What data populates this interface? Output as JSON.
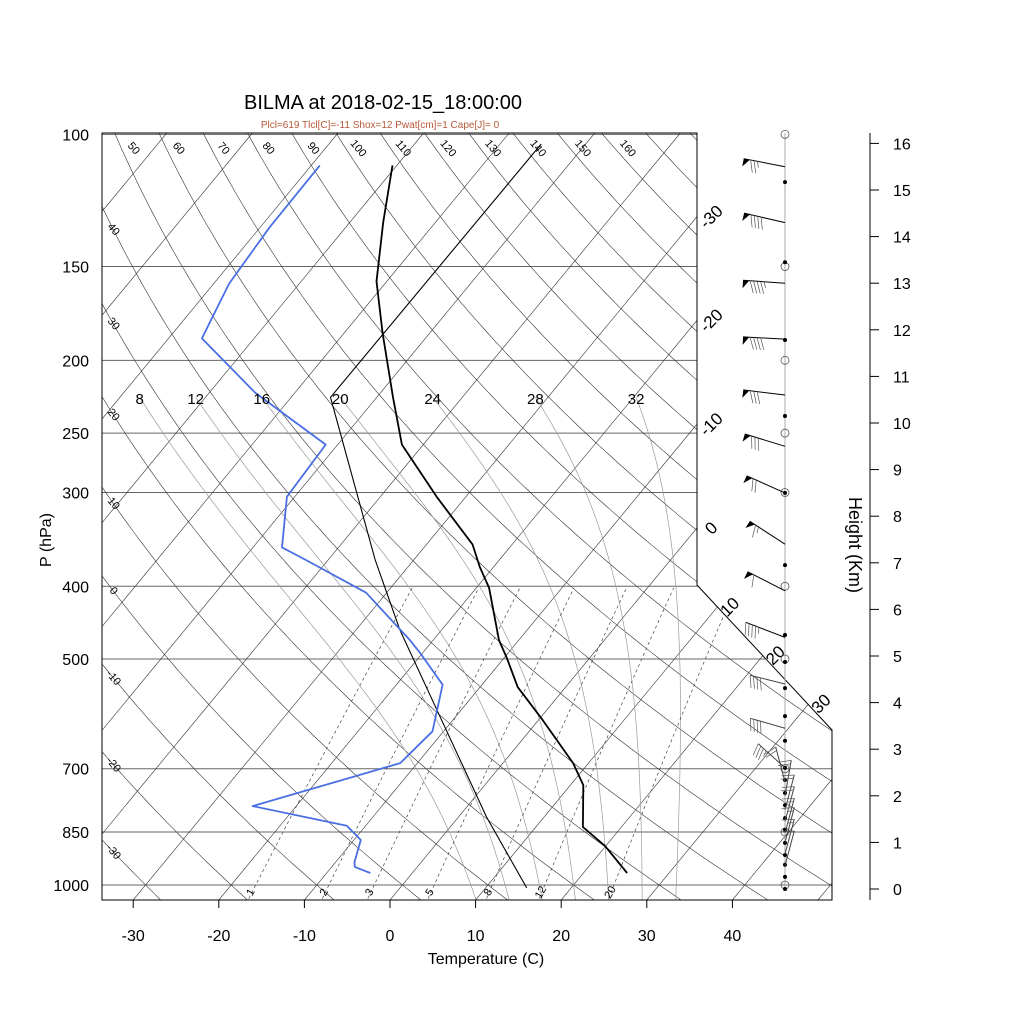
{
  "chart_data": {
    "type": "skewt",
    "title": "BILMA at 2018-02-15_18:00:00",
    "subtitle": "Plcl=619 Tlcl[C]=-11 Shox=12 Pwat[cm]=1 Cape[J]= 0",
    "xlabel": "Temperature (C)",
    "ylabel": "P (hPa)",
    "y2label": "Height (Km)",
    "x_ticks": [
      -30,
      -20,
      -10,
      0,
      10,
      20,
      30,
      40
    ],
    "pressure_levels": [
      100,
      150,
      200,
      250,
      300,
      400,
      500,
      700,
      850,
      1000
    ],
    "height_ticks_km": [
      0,
      1,
      2,
      3,
      4,
      5,
      6,
      7,
      8,
      9,
      10,
      11,
      12,
      13,
      14,
      15,
      16
    ],
    "dry_adiabat_labels_top": [
      50,
      60,
      70,
      80,
      90,
      100,
      110,
      120,
      130,
      140,
      150,
      160
    ],
    "dry_adiabat_labels_left": [
      40,
      30,
      20,
      10,
      0,
      -10,
      -20,
      -30
    ],
    "isotherm_labels": [
      -30,
      -20,
      -10,
      0,
      10,
      20,
      30
    ],
    "moist_adiabat_labels": [
      8,
      12,
      16,
      20,
      24,
      28,
      32
    ],
    "mixing_ratio_labels": [
      1,
      2,
      3,
      5,
      8,
      12,
      20
    ],
    "temperature": [
      {
        "p": 964,
        "t": 25.1
      },
      {
        "p": 887,
        "t": 19.9
      },
      {
        "p": 837,
        "t": 15.5
      },
      {
        "p": 736,
        "t": 11.5
      },
      {
        "p": 688,
        "t": 8.2
      },
      {
        "p": 603,
        "t": 0.5
      },
      {
        "p": 545,
        "t": -5.6
      },
      {
        "p": 497,
        "t": -9.8
      },
      {
        "p": 472,
        "t": -12.3
      },
      {
        "p": 402,
        "t": -18.5
      },
      {
        "p": 377,
        "t": -21.6
      },
      {
        "p": 352,
        "t": -24.6
      },
      {
        "p": 304,
        "t": -33.4
      },
      {
        "p": 259,
        "t": -42.5
      },
      {
        "p": 224,
        "t": -48.1
      },
      {
        "p": 184,
        "t": -55.5
      },
      {
        "p": 157,
        "t": -61.2
      },
      {
        "p": 131,
        "t": -66.1
      },
      {
        "p": 110,
        "t": -70.5
      }
    ],
    "dewpoint": [
      {
        "p": 964,
        "t": -4.9
      },
      {
        "p": 946,
        "t": -7.3
      },
      {
        "p": 932,
        "t": -7.8
      },
      {
        "p": 871,
        "t": -9.2
      },
      {
        "p": 834,
        "t": -12.2
      },
      {
        "p": 785,
        "t": -25.1
      },
      {
        "p": 688,
        "t": -12.0
      },
      {
        "p": 624,
        "t": -11.3
      },
      {
        "p": 541,
        "t": -14.6
      },
      {
        "p": 494,
        "t": -19.9
      },
      {
        "p": 472,
        "t": -22.7
      },
      {
        "p": 408,
        "t": -32.4
      },
      {
        "p": 369,
        "t": -42.6
      },
      {
        "p": 355,
        "t": -46.6
      },
      {
        "p": 304,
        "t": -50.9
      },
      {
        "p": 259,
        "t": -51.4
      },
      {
        "p": 221,
        "t": -64.6
      },
      {
        "p": 187,
        "t": -76.1
      },
      {
        "p": 158,
        "t": -78.2
      },
      {
        "p": 133,
        "t": -78.9
      },
      {
        "p": 110,
        "t": -79.0
      }
    ],
    "parcel": [
      {
        "p": 1009,
        "t": 14.8
      },
      {
        "p": 812,
        "t": 3.3
      },
      {
        "p": 597,
        "t": -11.8
      },
      {
        "p": 457,
        "t": -24.9
      },
      {
        "p": 369,
        "t": -34.5
      },
      {
        "p": 224,
        "t": -55.4
      },
      {
        "p": 103,
        "t": -55.2
      }
    ],
    "winds": [
      {
        "height_km": 15.5,
        "dir_deg": 281,
        "speed_kt": 75
      },
      {
        "height_km": 14.3,
        "dir_deg": 283,
        "speed_kt": 90
      },
      {
        "height_km": 13.0,
        "dir_deg": 274,
        "speed_kt": 95
      },
      {
        "height_km": 11.8,
        "dir_deg": 273,
        "speed_kt": 90
      },
      {
        "height_km": 10.6,
        "dir_deg": 277,
        "speed_kt": 80
      },
      {
        "height_km": 9.5,
        "dir_deg": 287,
        "speed_kt": 80
      },
      {
        "height_km": 8.5,
        "dir_deg": 294,
        "speed_kt": 70
      },
      {
        "height_km": 7.4,
        "dir_deg": 303,
        "speed_kt": 65
      },
      {
        "height_km": 6.4,
        "dir_deg": 297,
        "speed_kt": 60
      },
      {
        "height_km": 5.4,
        "dir_deg": 291,
        "speed_kt": 45
      },
      {
        "height_km": 4.4,
        "dir_deg": 284,
        "speed_kt": 40
      },
      {
        "height_km": 3.45,
        "dir_deg": 286,
        "speed_kt": 40
      },
      {
        "height_km": 2.6,
        "dir_deg": 312,
        "speed_kt": 35
      },
      {
        "height_km": 2.3,
        "dir_deg": 345,
        "speed_kt": 20
      },
      {
        "height_km": 2.0,
        "dir_deg": 10,
        "speed_kt": 20
      },
      {
        "height_km": 1.7,
        "dir_deg": 15,
        "speed_kt": 20
      },
      {
        "height_km": 1.45,
        "dir_deg": 15,
        "speed_kt": 20
      },
      {
        "height_km": 1.2,
        "dir_deg": 15,
        "speed_kt": 15
      },
      {
        "height_km": 1.0,
        "dir_deg": 15,
        "speed_kt": 15
      },
      {
        "height_km": 0.75,
        "dir_deg": 15,
        "speed_kt": 15
      },
      {
        "height_km": 0.5,
        "dir_deg": 15,
        "speed_kt": 10
      }
    ],
    "sounding_level_heights_km": [
      15.17,
      13.45,
      11.78,
      10.15,
      8.5,
      6.95,
      5.45,
      4.87,
      4.31,
      3.71,
      3.18,
      2.6,
      2.34,
      2.06,
      1.8,
      1.52,
      1.27,
      0.99,
      0.73,
      0.52,
      0.26,
      0
    ],
    "colors": {
      "temperature": "#000000",
      "dewpoint": "#4a6fe3",
      "parcel": "#000000",
      "subtitle": "#b5583a",
      "grid": "#333333",
      "moist_adiabat": "#9a9a9a",
      "isobar": "#666666"
    }
  }
}
